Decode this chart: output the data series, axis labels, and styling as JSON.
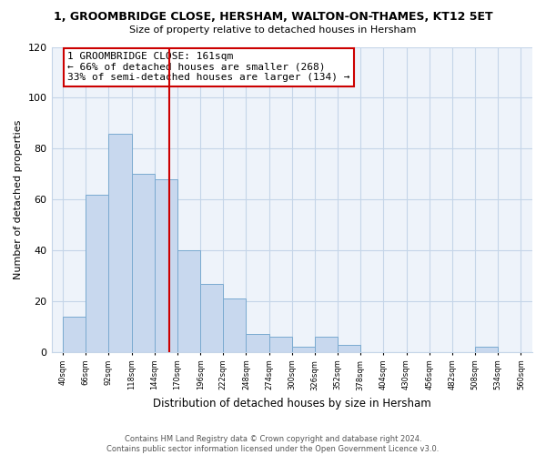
{
  "title": "1, GROOMBRIDGE CLOSE, HERSHAM, WALTON-ON-THAMES, KT12 5ET",
  "subtitle": "Size of property relative to detached houses in Hersham",
  "xlabel": "Distribution of detached houses by size in Hersham",
  "ylabel": "Number of detached properties",
  "bar_color": "#c8d8ee",
  "bar_edge_color": "#7aaad0",
  "bins": [
    40,
    66,
    92,
    118,
    144,
    170,
    196,
    222,
    248,
    274,
    300,
    326,
    352,
    378,
    404,
    430,
    456,
    482,
    508,
    534,
    560
  ],
  "counts": [
    14,
    62,
    86,
    70,
    68,
    40,
    27,
    21,
    7,
    6,
    2,
    6,
    3,
    0,
    0,
    0,
    0,
    0,
    2,
    0
  ],
  "property_size": 161,
  "vline_color": "#cc0000",
  "annotation_text": "1 GROOMBRIDGE CLOSE: 161sqm\n← 66% of detached houses are smaller (268)\n33% of semi-detached houses are larger (134) →",
  "annotation_box_color": "white",
  "annotation_box_edge_color": "#cc0000",
  "ylim": [
    0,
    120
  ],
  "yticks": [
    0,
    20,
    40,
    60,
    80,
    100,
    120
  ],
  "tick_labels": [
    "40sqm",
    "66sqm",
    "92sqm",
    "118sqm",
    "144sqm",
    "170sqm",
    "196sqm",
    "222sqm",
    "248sqm",
    "274sqm",
    "300sqm",
    "326sqm",
    "352sqm",
    "378sqm",
    "404sqm",
    "430sqm",
    "456sqm",
    "482sqm",
    "508sqm",
    "534sqm",
    "560sqm"
  ],
  "footer_text": "Contains HM Land Registry data © Crown copyright and database right 2024.\nContains public sector information licensed under the Open Government Licence v3.0.",
  "bg_color": "#ffffff",
  "plot_bg_color": "#eef3fa",
  "grid_color": "#c5d5e8"
}
